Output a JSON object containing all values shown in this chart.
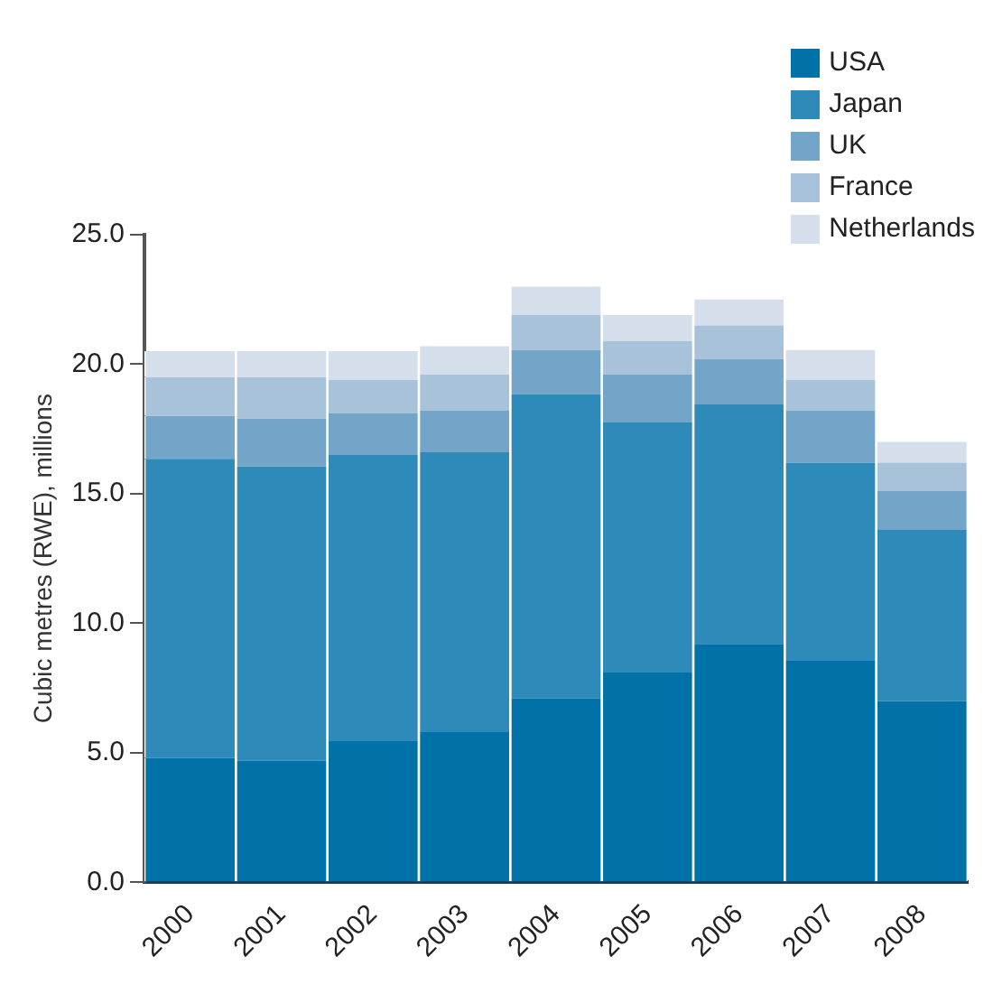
{
  "chart_data": {
    "type": "bar",
    "stacked": true,
    "ylabel": "Cubic metres (RWE), millions",
    "categories": [
      "2000",
      "2001",
      "2002",
      "2003",
      "2004",
      "2005",
      "2006",
      "2007",
      "2008"
    ],
    "series": [
      {
        "name": "USA",
        "color": "#0072a8",
        "values": [
          4.8,
          4.7,
          5.45,
          5.8,
          7.1,
          8.1,
          9.2,
          8.55,
          7.0
        ]
      },
      {
        "name": "Japan",
        "color": "#2e8ab8",
        "values": [
          11.55,
          11.35,
          11.05,
          10.8,
          11.75,
          9.65,
          9.25,
          7.65,
          6.6
        ]
      },
      {
        "name": "UK",
        "color": "#73a5c8",
        "values": [
          1.65,
          1.85,
          1.6,
          1.6,
          1.7,
          1.85,
          1.75,
          2.0,
          1.5
        ]
      },
      {
        "name": "France",
        "color": "#a8c2da",
        "values": [
          1.5,
          1.6,
          1.3,
          1.4,
          1.35,
          1.3,
          1.3,
          1.2,
          1.1
        ]
      },
      {
        "name": "Netherlands",
        "color": "#d5dfeb",
        "values": [
          1.0,
          1.0,
          1.1,
          1.1,
          1.1,
          1.0,
          1.0,
          1.15,
          0.8
        ]
      }
    ],
    "ylim": [
      0,
      25
    ],
    "yticks": [
      {
        "value": 0,
        "label": "0.0"
      },
      {
        "value": 5,
        "label": "5.0"
      },
      {
        "value": 10,
        "label": "10.0"
      },
      {
        "value": 15,
        "label": "15.0"
      },
      {
        "value": 20,
        "label": "20.0"
      },
      {
        "value": 25,
        "label": "25.0"
      }
    ],
    "grid": false,
    "legend": "top right"
  }
}
